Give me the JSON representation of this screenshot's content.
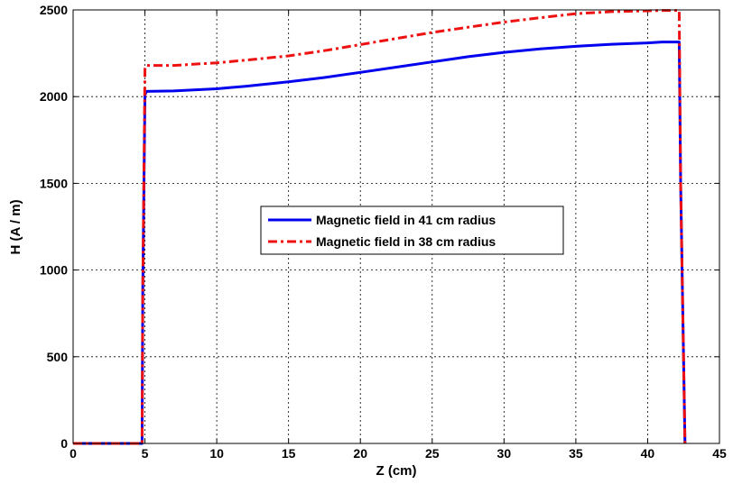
{
  "chart_data": {
    "type": "line",
    "title": "",
    "xlabel": "Z (cm)",
    "ylabel": "H (A / m)",
    "xlim": [
      0,
      45
    ],
    "ylim": [
      0,
      2500
    ],
    "xticks": [
      0,
      5,
      10,
      15,
      20,
      25,
      30,
      35,
      40,
      45
    ],
    "yticks": [
      0,
      500,
      1000,
      1500,
      2000,
      2500
    ],
    "grid": true,
    "legend_position": "center",
    "series": [
      {
        "name": "Magnetic field in 41 cm radius",
        "color": "#0000ee",
        "style": "solid",
        "x": [
          0,
          4.8,
          4.85,
          5.0,
          5.1,
          7,
          10,
          12,
          15,
          17.5,
          20,
          22.5,
          25,
          27.5,
          30,
          32.5,
          35,
          37.5,
          40,
          41,
          42.2,
          42.3,
          42.6
        ],
        "y": [
          0,
          0,
          900,
          2010,
          2030,
          2033,
          2045,
          2060,
          2085,
          2110,
          2140,
          2170,
          2200,
          2230,
          2255,
          2275,
          2290,
          2302,
          2310,
          2315,
          2315,
          1500,
          0
        ]
      },
      {
        "name": "Magnetic field in 38 cm radius",
        "color": "#ee1111",
        "style": "dashdot",
        "x": [
          0,
          4.8,
          4.85,
          5.0,
          5.1,
          7,
          10,
          12,
          15,
          17.5,
          20,
          22.5,
          25,
          27.5,
          30,
          32.5,
          35,
          37.5,
          40,
          41,
          42.2,
          42.3,
          42.6
        ],
        "y": [
          0,
          0,
          900,
          2160,
          2180,
          2180,
          2195,
          2210,
          2235,
          2265,
          2300,
          2335,
          2370,
          2400,
          2430,
          2455,
          2478,
          2490,
          2495,
          2497,
          2497,
          1500,
          0
        ]
      }
    ]
  }
}
